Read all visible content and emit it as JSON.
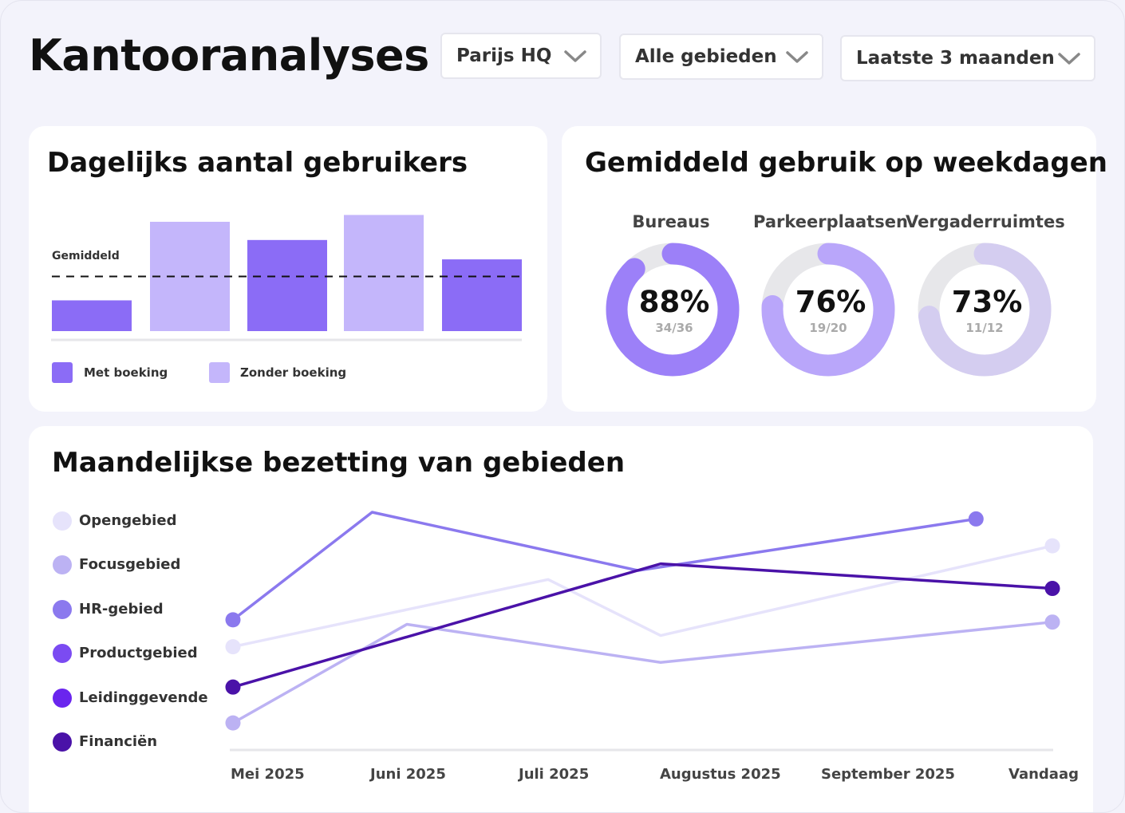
{
  "header": {
    "title": "Kantooranalyses",
    "filters": [
      {
        "label": "Parijs HQ"
      },
      {
        "label": "Alle gebieden"
      },
      {
        "label": "Laatste 3 maanden"
      }
    ]
  },
  "colors": {
    "accent_dark": "#8b6cf6",
    "accent_light": "#c4b6fb",
    "donut_track": "#e7e7ea"
  },
  "daily_users": {
    "title": "Dagelijks aantal gebruikers",
    "average_label": "Gemiddeld",
    "legend": [
      {
        "label": "Met boeking",
        "color": "#8b6cf6"
      },
      {
        "label": "Zonder boeking",
        "color": "#c4b6fb"
      }
    ]
  },
  "weekday_usage": {
    "title": "Gemiddeld gebruik op weekdagen",
    "donuts": [
      {
        "label": "Bureaus",
        "percent": "88%",
        "fraction": "34/36",
        "value": 0.88,
        "color": "#9c80f8"
      },
      {
        "label": "Parkeerplaatsen",
        "percent": "76%",
        "fraction": "19/20",
        "value": 0.76,
        "color": "#b9a6fa"
      },
      {
        "label": "Vergaderruimtes",
        "percent": "73%",
        "fraction": "11/12",
        "value": 0.73,
        "color": "#d4cdf0"
      }
    ]
  },
  "monthly": {
    "title": "Maandelijkse bezetting van gebieden",
    "series_legend": [
      {
        "label": "Opengebied",
        "color": "#e6e3fb"
      },
      {
        "label": "Focusgebied",
        "color": "#bcb2f3"
      },
      {
        "label": "HR-gebied",
        "color": "#8b79ee"
      },
      {
        "label": "Productgebied",
        "color": "#7b4bf2"
      },
      {
        "label": "Leidinggevende",
        "color": "#6a25ee"
      },
      {
        "label": "Financiën",
        "color": "#4a12a8"
      }
    ]
  },
  "chart_data": [
    {
      "type": "bar",
      "title": "Dagelijks aantal gebruikers",
      "categories": [
        "",
        "",
        "",
        "",
        ""
      ],
      "values": [
        0.27,
        0.96,
        0.8,
        1.02,
        0.63
      ],
      "bar_colors": [
        "#8b6cf6",
        "#c4b6fb",
        "#8b6cf6",
        "#c4b6fb",
        "#8b6cf6"
      ],
      "average": 0.48,
      "average_label": "Gemiddeld",
      "ylim": [
        0,
        1.1
      ],
      "legend": [
        "Met boeking",
        "Zonder boeking"
      ],
      "legend_position": "bottom-left",
      "grid": false
    },
    {
      "type": "line",
      "title": "Maandelijkse bezetting van gebieden",
      "x": [
        "Mei 2025",
        "Juni 2025",
        "Juli 2025",
        "Augustus 2025",
        "September 2025",
        "Vandaag"
      ],
      "ylim": [
        0,
        1
      ],
      "series": [
        {
          "name": "HR-gebied",
          "color": "#8b79ee",
          "values": [
            0.52,
            1.0,
            null,
            0.74,
            null,
            0.97
          ],
          "x_index": [
            0,
            0.8,
            null,
            2.8,
            null,
            4.7
          ]
        },
        {
          "name": "Opengebied",
          "color": "#e6e3fb",
          "values": [
            0.4,
            null,
            0.7,
            0.45,
            null,
            0.85
          ]
        },
        {
          "name": "Focusgebied",
          "color": "#bcb2f3",
          "values": [
            0.06,
            0.5,
            null,
            0.33,
            null,
            0.51
          ]
        },
        {
          "name": "Financiën",
          "color": "#4a12a8",
          "values": [
            0.22,
            null,
            null,
            0.77,
            null,
            0.66
          ]
        }
      ],
      "legend_position": "left",
      "grid": false
    }
  ]
}
